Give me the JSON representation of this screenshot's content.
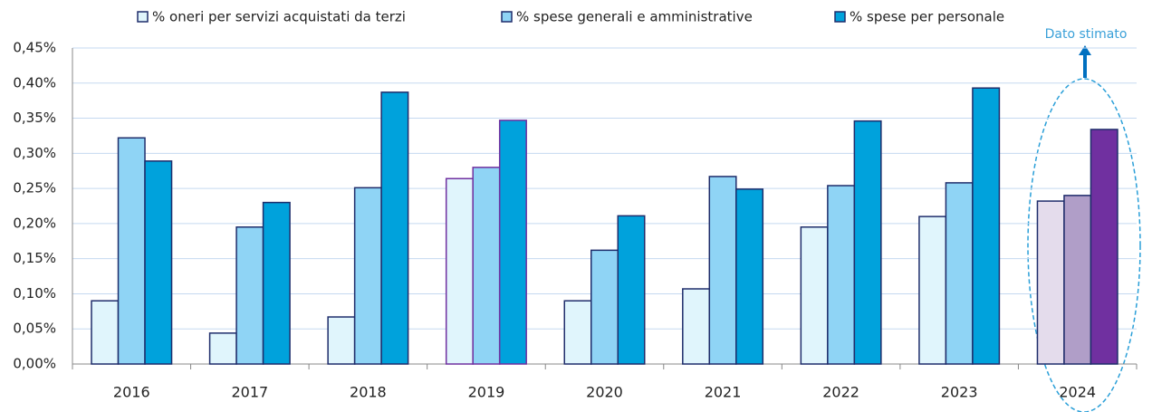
{
  "chart_data": {
    "type": "bar",
    "categories": [
      "2016",
      "2017",
      "2018",
      "2019",
      "2020",
      "2021",
      "2022",
      "2023",
      "2024"
    ],
    "series": [
      {
        "name": "% oneri per servizi acquistati da terzi",
        "color": "#e0f5fc",
        "values": [
          0.09,
          0.044,
          0.067,
          0.264,
          0.09,
          0.107,
          0.195,
          0.21,
          0.232
        ],
        "point_colors": [
          "#e0f5fc",
          "#e0f5fc",
          "#e0f5fc",
          "#e0f5fc",
          "#e0f5fc",
          "#e0f5fc",
          "#e0f5fc",
          "#e0f5fc",
          "#e4dcec"
        ],
        "edge_colors": [
          "#1f2d6b",
          "#1f2d6b",
          "#1f2d6b",
          "#7030a0",
          "#1f2d6b",
          "#1f2d6b",
          "#1f2d6b",
          "#1f2d6b",
          "#1f2d6b"
        ]
      },
      {
        "name": "% spese generali e amministrative",
        "color": "#8fd4f5",
        "values": [
          0.322,
          0.195,
          0.251,
          0.28,
          0.162,
          0.267,
          0.254,
          0.258,
          0.24
        ],
        "point_colors": [
          "#8fd4f5",
          "#8fd4f5",
          "#8fd4f5",
          "#8fd4f5",
          "#8fd4f5",
          "#8fd4f5",
          "#8fd4f5",
          "#8fd4f5",
          "#b09ec8"
        ],
        "edge_colors": [
          "#1f2d6b",
          "#1f2d6b",
          "#1f2d6b",
          "#7030a0",
          "#1f2d6b",
          "#1f2d6b",
          "#1f2d6b",
          "#1f2d6b",
          "#1f2d6b"
        ]
      },
      {
        "name": "% spese per personale",
        "color": "#00a2dc",
        "values": [
          0.289,
          0.23,
          0.387,
          0.347,
          0.211,
          0.249,
          0.346,
          0.393,
          0.334
        ],
        "point_colors": [
          "#00a2dc",
          "#00a2dc",
          "#00a2dc",
          "#00a2dc",
          "#00a2dc",
          "#00a2dc",
          "#00a2dc",
          "#00a2dc",
          "#7030a0"
        ],
        "edge_colors": [
          "#1f2d6b",
          "#1f2d6b",
          "#1f2d6b",
          "#7030a0",
          "#1f2d6b",
          "#1f2d6b",
          "#1f2d6b",
          "#1f2d6b",
          "#1f2d6b"
        ]
      }
    ],
    "ylim": [
      0,
      0.45
    ],
    "yticks": [
      {
        "value": 0,
        "label": "0,00%"
      },
      {
        "value": 0.05,
        "label": "0,05%"
      },
      {
        "value": 0.1,
        "label": "0,10%"
      },
      {
        "value": 0.15,
        "label": "0,15%"
      },
      {
        "value": 0.2,
        "label": "0,20%"
      },
      {
        "value": 0.25,
        "label": "0,25%"
      },
      {
        "value": 0.3,
        "label": "0,30%"
      },
      {
        "value": 0.35,
        "label": "0,35%"
      },
      {
        "value": 0.4,
        "label": "0,40%"
      },
      {
        "value": 0.45,
        "label": "0,45%"
      }
    ],
    "grid": true,
    "legend": "top",
    "annotation": "Dato stimato"
  }
}
